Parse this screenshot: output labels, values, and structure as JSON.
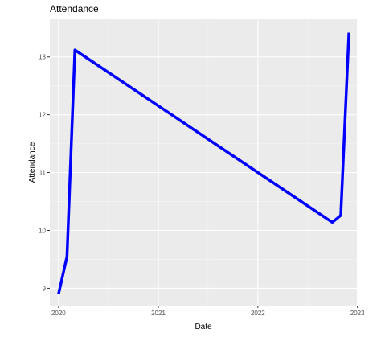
{
  "chart_data": {
    "type": "line",
    "title": "Attendance",
    "xlabel": "Date",
    "ylabel": "Attendance",
    "x_axis_type": "date",
    "xlim": [
      "2019-11-30",
      "2023-01-02"
    ],
    "ylim": [
      8.7,
      13.65
    ],
    "x_ticks": [
      "2020-01-01",
      "2021-01-01",
      "2022-01-01",
      "2023-01-01"
    ],
    "x_tick_labels": [
      "2020",
      "2021",
      "2022",
      "2023"
    ],
    "y_ticks": [
      9,
      10,
      11,
      12,
      13
    ],
    "y_tick_labels": [
      "9",
      "10",
      "11",
      "12",
      "13"
    ],
    "grid": true,
    "legend": "none",
    "colors": {
      "line": "#0000ff",
      "panel_background": "#ebebeb",
      "grid_major": "#ffffff",
      "grid_minor": "#f5f5f5"
    },
    "series": [
      {
        "x": [
          "2020-01-01",
          "2020-02-01",
          "2020-03-01",
          "2022-10-01",
          "2022-11-01",
          "2022-12-01"
        ],
        "y": [
          8.9,
          9.55,
          13.12,
          10.14,
          10.26,
          13.42
        ]
      }
    ]
  }
}
